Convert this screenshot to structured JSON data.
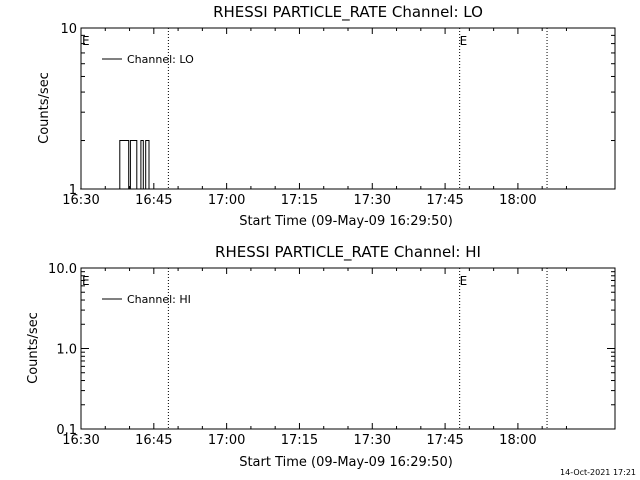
{
  "chart_data": [
    {
      "type": "line",
      "title": "RHESSI PARTICLE_RATE Channel: LO",
      "xlabel": "Start Time (09-May-09 16:29:50)",
      "ylabel": "Counts/sec",
      "yscale": "log",
      "ylim": [
        1,
        10
      ],
      "yticks": [
        "1",
        "10"
      ],
      "xlim": [
        "16:30",
        "18:20"
      ],
      "xticks": [
        "16:30",
        "16:45",
        "17:00",
        "17:15",
        "17:30",
        "17:45",
        "18:00"
      ],
      "legend": "upper-left",
      "series": [
        {
          "name": "Channel: LO",
          "x": [
            "16:29:50",
            "16:38:00",
            "16:38:00",
            "16:39:50",
            "16:39:50",
            "16:40:10",
            "16:40:10",
            "16:41:30",
            "16:41:30",
            "16:42:20",
            "16:42:20",
            "16:42:50",
            "16:42:50",
            "16:43:20",
            "16:43:20",
            "16:44:00",
            "16:44:00",
            "16:44:30"
          ],
          "y": [
            1,
            1,
            2,
            2,
            1,
            1,
            2,
            2,
            1,
            1,
            2,
            2,
            1,
            1,
            2,
            2,
            1,
            1
          ]
        }
      ],
      "event_lines": [
        {
          "x": "16:30",
          "label": "E"
        },
        {
          "x": "16:48",
          "label": ""
        },
        {
          "x": "17:48",
          "label": "E"
        },
        {
          "x": "18:06",
          "label": ""
        }
      ]
    },
    {
      "type": "line",
      "title": "RHESSI PARTICLE_RATE Channel: HI",
      "xlabel": "Start Time (09-May-09 16:29:50)",
      "ylabel": "Counts/sec",
      "yscale": "log",
      "ylim": [
        0.1,
        10
      ],
      "yticks": [
        "0.1",
        "1.0",
        "10.0"
      ],
      "xlim": [
        "16:30",
        "18:20"
      ],
      "xticks": [
        "16:30",
        "16:45",
        "17:00",
        "17:15",
        "17:30",
        "17:45",
        "18:00"
      ],
      "legend": "upper-left",
      "series": [
        {
          "name": "Channel: HI",
          "x": [],
          "y": []
        }
      ],
      "event_lines": [
        {
          "x": "16:30",
          "label": "E"
        },
        {
          "x": "16:48",
          "label": ""
        },
        {
          "x": "17:48",
          "label": "E"
        },
        {
          "x": "18:06",
          "label": ""
        }
      ]
    }
  ],
  "footer": {
    "timestamp": "14-Oct-2021 17:21"
  },
  "colors": {
    "background": "#ffffff",
    "foreground": "#000000"
  }
}
